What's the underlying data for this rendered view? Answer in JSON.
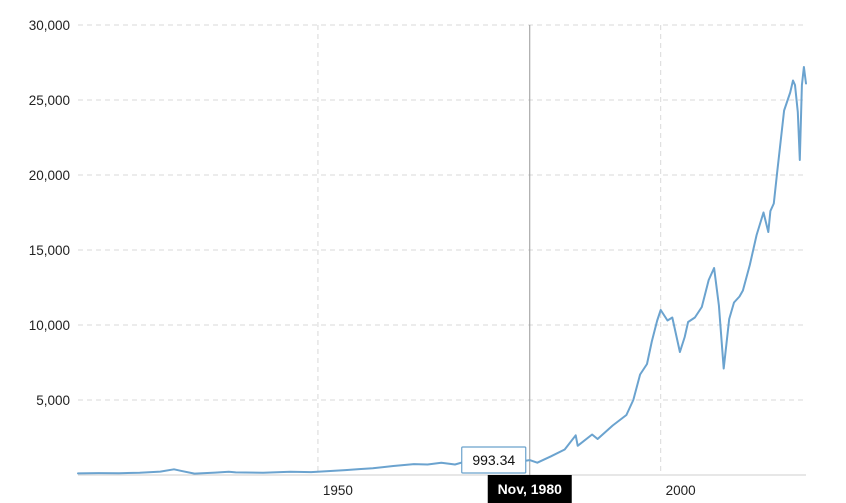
{
  "chart_data": {
    "type": "line",
    "title": "",
    "xlabel": "",
    "ylabel": "",
    "xlim": [
      1915,
      2021.2
    ],
    "ylim": [
      0,
      30000
    ],
    "yticks": [
      {
        "value": 5000,
        "label": "5,000"
      },
      {
        "value": 10000,
        "label": "10,000"
      },
      {
        "value": 15000,
        "label": "15,000"
      },
      {
        "value": 20000,
        "label": "20,000"
      },
      {
        "value": 25000,
        "label": "25,000"
      },
      {
        "value": 30000,
        "label": "30,000"
      }
    ],
    "xticks": [
      {
        "value": 1950,
        "label": "1950"
      },
      {
        "value": 2000,
        "label": "2000"
      }
    ],
    "grid": true,
    "series": [
      {
        "color": "#6ba3cf",
        "x": [
          1915,
          1918,
          1921,
          1924,
          1927,
          1929,
          1930,
          1932,
          1935,
          1937,
          1938,
          1942,
          1946,
          1949,
          1954,
          1956,
          1958,
          1961,
          1964,
          1966,
          1968,
          1970,
          1972,
          1973,
          1974,
          1976,
          1978,
          1980.9,
          1982,
          1984,
          1986,
          1987.6,
          1987.9,
          1990,
          1990.8,
          1993,
          1995,
          1996,
          1997,
          1998,
          1998.7,
          1999.5,
          2000,
          2001,
          2001.7,
          2002.8,
          2003.5,
          2004,
          2005,
          2006,
          2007,
          2007.8,
          2008.5,
          2009.2,
          2010,
          2010.7,
          2011.5,
          2012,
          2013,
          2014,
          2015,
          2015.7,
          2016,
          2016.5,
          2017,
          2018,
          2018.9,
          2019.3,
          2019.6,
          2020,
          2020.3,
          2020.6,
          2020.9,
          2021.2
        ],
        "y": [
          110,
          130,
          120,
          150,
          230,
          380,
          280,
          90,
          160,
          220,
          170,
          150,
          220,
          190,
          330,
          390,
          450,
          600,
          730,
          700,
          820,
          700,
          960,
          900,
          650,
          880,
          800,
          993,
          820,
          1250,
          1700,
          2650,
          1950,
          2700,
          2400,
          3300,
          4000,
          5000,
          6700,
          7400,
          8900,
          10300,
          11000,
          10300,
          10500,
          8200,
          9200,
          10200,
          10500,
          11200,
          13000,
          13800,
          11300,
          7100,
          10400,
          11500,
          11900,
          12300,
          14000,
          16000,
          17500,
          16200,
          17600,
          18100,
          20200,
          24300,
          25500,
          26300,
          26000,
          24200,
          21000,
          26000,
          27200,
          26100
        ]
      }
    ],
    "crosshair": {
      "x": 1980.9,
      "date_label": "Nov, 1980",
      "value_label": "993.34"
    }
  }
}
